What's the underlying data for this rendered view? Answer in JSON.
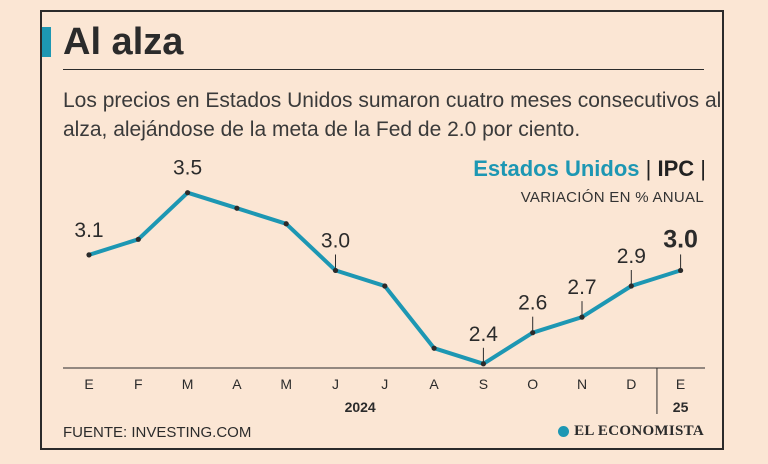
{
  "header": {
    "title": "Al alza",
    "subtitle": "Los precios en Estados Unidos sumaron cuatro meses consecutivos al alza, alejándose de la meta de la Fed de 2.0 por ciento."
  },
  "legend": {
    "country": "Estados Unidos",
    "separator": "|",
    "metric": "IPC",
    "units": "VARIACIÓN EN % ANUAL"
  },
  "footer": {
    "source": "FUENTE: INVESTING.COM",
    "logo": "EL ECONOMISTA"
  },
  "colors": {
    "accent": "#1d97b3",
    "text": "#2b2b2b",
    "background": "#fbe6d4"
  },
  "chart_data": {
    "type": "line",
    "title": "Estados Unidos | IPC |",
    "ylabel": "VARIACIÓN EN % ANUAL",
    "categories": [
      "E",
      "F",
      "M",
      "A",
      "M",
      "J",
      "J",
      "A",
      "S",
      "O",
      "N",
      "D",
      "E"
    ],
    "year_labels": [
      "2024",
      "25"
    ],
    "series": [
      {
        "name": "IPC",
        "values": [
          3.1,
          3.2,
          3.5,
          3.4,
          3.3,
          3.0,
          2.9,
          2.5,
          2.4,
          2.6,
          2.7,
          2.9,
          3.0
        ]
      }
    ],
    "data_labels": [
      {
        "index": 0,
        "text": "3.1"
      },
      {
        "index": 2,
        "text": "3.5"
      },
      {
        "index": 5,
        "text": "3.0"
      },
      {
        "index": 8,
        "text": "2.4"
      },
      {
        "index": 9,
        "text": "2.6"
      },
      {
        "index": 10,
        "text": "2.7"
      },
      {
        "index": 11,
        "text": "2.9"
      },
      {
        "index": 12,
        "text": "3.0"
      }
    ],
    "ylim": [
      2.0,
      3.8
    ],
    "grid": false
  }
}
